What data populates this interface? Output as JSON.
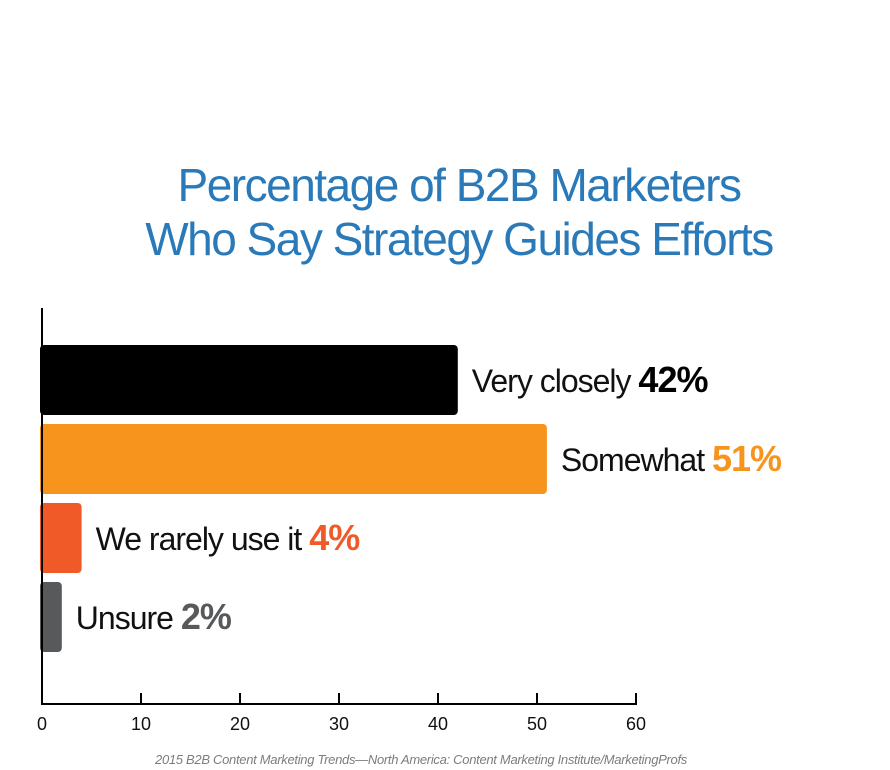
{
  "chart_data": {
    "type": "bar",
    "orientation": "horizontal",
    "title_lines": [
      "Percentage of B2B Marketers",
      "Who Say Strategy Guides Efforts"
    ],
    "categories": [
      "Very closely",
      "Somewhat",
      "We rarely use it",
      "Unsure"
    ],
    "values": [
      42,
      51,
      4,
      2
    ],
    "value_labels": [
      "42%",
      "51%",
      "4%",
      "2%"
    ],
    "bar_colors": [
      "#000000",
      "#f7941d",
      "#f05a28",
      "#58595b"
    ],
    "value_label_colors": [
      "#000000",
      "#f7941d",
      "#f05a28",
      "#58595b"
    ],
    "xlim": [
      0,
      60
    ],
    "xticks": [
      0,
      10,
      20,
      30,
      40,
      50,
      60
    ],
    "xlabel": "",
    "ylabel": "",
    "grid": false,
    "legend": "none",
    "title_color": "#2a7ab9"
  },
  "source": "2015 B2B Content Marketing Trends—North America: Content Marketing Institute/MarketingProfs"
}
